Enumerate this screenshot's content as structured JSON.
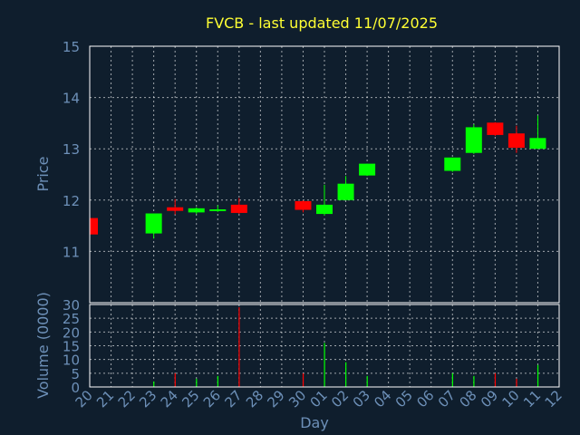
{
  "chart_data": [
    {
      "type": "candlestick",
      "title": "FVCB - last updated 11/07/2025",
      "ylabel": "Price",
      "ylim": [
        10,
        15
      ],
      "y_ticks": [
        "11",
        "12",
        "13",
        "14",
        "15"
      ],
      "grid": true,
      "colors": {
        "up": "#00ff00",
        "down": "#ff0000",
        "title": "#ffff33",
        "axis_text": "#6d90b8",
        "background": "#0f1e2d"
      },
      "x_ticks": [
        "20",
        "21",
        "22",
        "23",
        "24",
        "25",
        "26",
        "27",
        "28",
        "29",
        "30",
        "01",
        "02",
        "03",
        "04",
        "05",
        "06",
        "07",
        "08",
        "09",
        "10",
        "11",
        "12"
      ],
      "candles": [
        {
          "x": "20",
          "open": 11.65,
          "close": 11.33,
          "high": 11.65,
          "low": 11.33
        },
        {
          "x": "23",
          "open": 11.35,
          "close": 11.74,
          "high": 11.74,
          "low": 11.25
        },
        {
          "x": "24",
          "open": 11.86,
          "close": 11.79,
          "high": 12.02,
          "low": 11.72
        },
        {
          "x": "25",
          "open": 11.76,
          "close": 11.84,
          "high": 11.86,
          "low": 11.73
        },
        {
          "x": "26",
          "open": 11.79,
          "close": 11.82,
          "high": 11.9,
          "low": 11.77
        },
        {
          "x": "27",
          "open": 11.91,
          "close": 11.75,
          "high": 12.04,
          "low": 11.73
        },
        {
          "x": "30",
          "open": 11.98,
          "close": 11.81,
          "high": 11.99,
          "low": 11.76
        },
        {
          "x": "01",
          "open": 11.73,
          "close": 11.91,
          "high": 12.3,
          "low": 11.7
        },
        {
          "x": "02",
          "open": 12.0,
          "close": 12.32,
          "high": 12.47,
          "low": 12.0
        },
        {
          "x": "03",
          "open": 12.48,
          "close": 12.71,
          "high": 12.71,
          "low": 12.47
        },
        {
          "x": "07",
          "open": 12.57,
          "close": 12.83,
          "high": 12.83,
          "low": 12.55
        },
        {
          "x": "08",
          "open": 12.92,
          "close": 13.42,
          "high": 13.48,
          "low": 12.9
        },
        {
          "x": "09",
          "open": 13.51,
          "close": 13.27,
          "high": 13.52,
          "low": 13.25
        },
        {
          "x": "10",
          "open": 13.3,
          "close": 13.02,
          "high": 13.45,
          "low": 12.92
        },
        {
          "x": "11",
          "open": 13.0,
          "close": 13.21,
          "high": 13.65,
          "low": 12.99
        }
      ]
    },
    {
      "type": "bar",
      "ylabel": "Volume (0000)",
      "xlabel": "Day",
      "ylim": [
        0,
        30
      ],
      "y_ticks": [
        "0",
        "5",
        "10",
        "15",
        "20",
        "25",
        "30"
      ],
      "grid": true,
      "bars": [
        {
          "x": "20",
          "value": 0,
          "color": "#ff0000"
        },
        {
          "x": "23",
          "value": 2,
          "color": "#00ff00"
        },
        {
          "x": "24",
          "value": 5,
          "color": "#ff0000"
        },
        {
          "x": "25",
          "value": 3,
          "color": "#00ff00"
        },
        {
          "x": "26",
          "value": 4,
          "color": "#00ff00"
        },
        {
          "x": "27",
          "value": 29,
          "color": "#ff0000"
        },
        {
          "x": "30",
          "value": 5,
          "color": "#ff0000"
        },
        {
          "x": "01",
          "value": 16,
          "color": "#00ff00"
        },
        {
          "x": "02",
          "value": 9,
          "color": "#00ff00"
        },
        {
          "x": "03",
          "value": 4,
          "color": "#00ff00"
        },
        {
          "x": "07",
          "value": 5,
          "color": "#00ff00"
        },
        {
          "x": "08",
          "value": 4,
          "color": "#00ff00"
        },
        {
          "x": "09",
          "value": 5,
          "color": "#ff0000"
        },
        {
          "x": "10",
          "value": 3,
          "color": "#ff0000"
        },
        {
          "x": "11",
          "value": 8,
          "color": "#00ff00"
        }
      ]
    }
  ]
}
